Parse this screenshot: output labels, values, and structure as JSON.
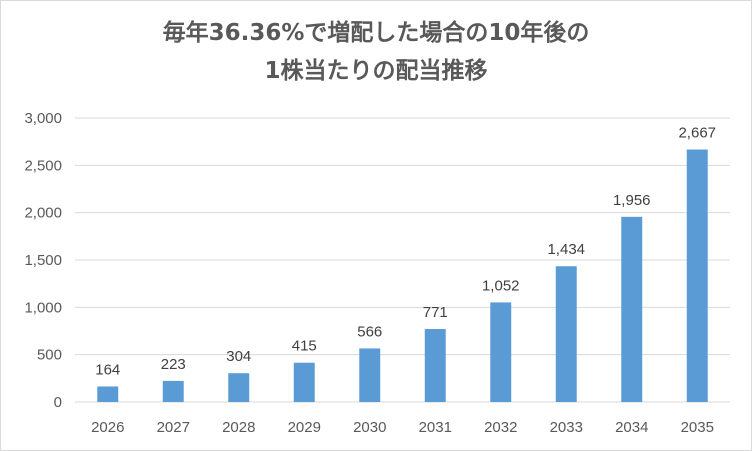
{
  "chart_data": {
    "type": "bar",
    "title_line1": "毎年36.36%で増配した場合の10年後の",
    "title_line2": "1株当たりの配当推移",
    "categories": [
      "2026",
      "2027",
      "2028",
      "2029",
      "2030",
      "2031",
      "2032",
      "2033",
      "2034",
      "2035"
    ],
    "values": [
      164,
      223,
      304,
      415,
      566,
      771,
      1052,
      1434,
      1956,
      2667
    ],
    "data_labels": [
      "164",
      "223",
      "304",
      "415",
      "566",
      "771",
      "1,052",
      "1,434",
      "1,956",
      "2,667"
    ],
    "y_ticks": [
      "0",
      "500",
      "1,000",
      "1,500",
      "2,000",
      "2,500",
      "3,000"
    ],
    "ylim": [
      0,
      3000
    ],
    "grid": true,
    "bar_color": "#5b9bd5",
    "grid_color": "#d9d9d9",
    "text_color": "#595959"
  }
}
